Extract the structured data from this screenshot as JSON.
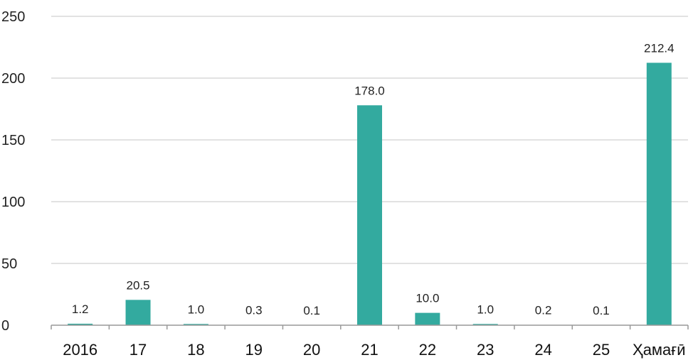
{
  "chart_data": {
    "type": "bar",
    "title": "",
    "xlabel": "",
    "ylabel": "",
    "categories": [
      "2016",
      "17",
      "18",
      "19",
      "20",
      "21",
      "22",
      "23",
      "24",
      "25",
      "Ҳамағӣ"
    ],
    "values": [
      1.2,
      20.5,
      1.0,
      0.3,
      0.1,
      178.0,
      10.0,
      1.0,
      0.2,
      0.1,
      212.4
    ],
    "data_labels": [
      "1.2",
      "20.5",
      "1.0",
      "0.3",
      "0.1",
      "178.0",
      "10.0",
      "1.0",
      "0.2",
      "0.1",
      "212.4"
    ],
    "y_ticks": [
      0,
      50,
      100,
      150,
      200,
      250
    ],
    "ylim": [
      0,
      250
    ],
    "grid": true,
    "legend": "none",
    "colors": {
      "bar": "#33aa9f",
      "grid": "#d9d9d9",
      "axis": "#999999"
    }
  }
}
